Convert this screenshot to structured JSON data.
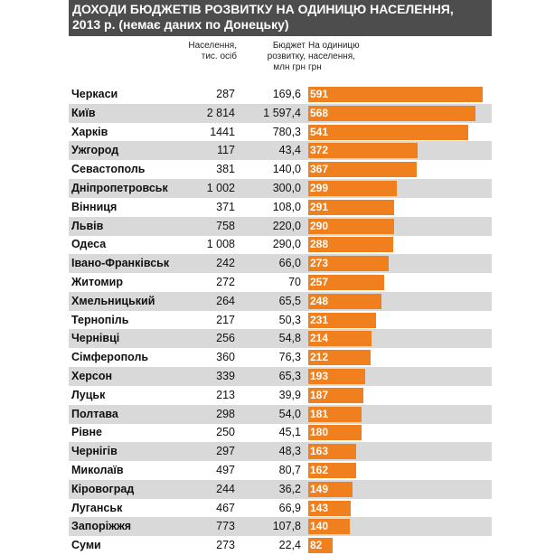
{
  "chart_data": {
    "type": "bar",
    "orientation": "horizontal",
    "title_line1": "ДОХОДИ БЮДЖЕТІВ РОЗВИТКУ НА ОДИНИЦЮ НАСЕЛЕННЯ,",
    "title_line2": "2013 р. (немає даних по Донецьку)",
    "columns": {
      "population": [
        "Населення,",
        "тис. осіб"
      ],
      "budget": [
        "Бюджет",
        "розвитку,",
        "млн грн"
      ],
      "per_capita": [
        "На одиницю",
        "населення,",
        "грн"
      ]
    },
    "colors": {
      "bar": "#f07f1e",
      "stripe": "#d9d9d9",
      "title_bg": "#4d4d4d"
    },
    "xlim": [
      0,
      591
    ],
    "rows": [
      {
        "city": "Черкаси",
        "population": "287",
        "budget": "169,6",
        "value": 591
      },
      {
        "city": "Київ",
        "population": "2 814",
        "budget": "1 597,4",
        "value": 568
      },
      {
        "city": "Харків",
        "population": "1441",
        "budget": "780,3",
        "value": 541
      },
      {
        "city": "Ужгород",
        "population": "117",
        "budget": "43,4",
        "value": 372
      },
      {
        "city": "Севастополь",
        "population": "381",
        "budget": "140,0",
        "value": 367
      },
      {
        "city": "Дніпропетровськ",
        "population": "1 002",
        "budget": "300,0",
        "value": 299
      },
      {
        "city": "Вінниця",
        "population": "371",
        "budget": "108,0",
        "value": 291
      },
      {
        "city": "Львів",
        "population": "758",
        "budget": "220,0",
        "value": 290
      },
      {
        "city": "Одеса",
        "population": "1 008",
        "budget": "290,0",
        "value": 288
      },
      {
        "city": "Івано-Франківськ",
        "population": "242",
        "budget": "66,0",
        "value": 273
      },
      {
        "city": "Житомир",
        "population": "272",
        "budget": "70",
        "value": 257
      },
      {
        "city": "Хмельницький",
        "population": "264",
        "budget": "65,5",
        "value": 248
      },
      {
        "city": "Тернопіль",
        "population": "217",
        "budget": "50,3",
        "value": 231
      },
      {
        "city": "Чернівці",
        "population": "256",
        "budget": "54,8",
        "value": 214
      },
      {
        "city": "Сімферополь",
        "population": "360",
        "budget": "76,3",
        "value": 212
      },
      {
        "city": "Херсон",
        "population": "339",
        "budget": "65,3",
        "value": 193
      },
      {
        "city": "Луцьк",
        "population": "213",
        "budget": "39,9",
        "value": 187
      },
      {
        "city": "Полтава",
        "population": "298",
        "budget": "54,0",
        "value": 181
      },
      {
        "city": "Рівне",
        "population": "250",
        "budget": "45,1",
        "value": 180
      },
      {
        "city": "Чернігів",
        "population": "297",
        "budget": "48,3",
        "value": 163
      },
      {
        "city": "Миколаїв",
        "population": "497",
        "budget": "80,7",
        "value": 162
      },
      {
        "city": "Кіровоград",
        "population": "244",
        "budget": "36,2",
        "value": 149
      },
      {
        "city": "Луганськ",
        "population": "467",
        "budget": "66,9",
        "value": 143
      },
      {
        "city": "Запоріжжя",
        "population": "773",
        "budget": "107,8",
        "value": 140
      },
      {
        "city": "Суми",
        "population": "273",
        "budget": "22,4",
        "value": 82
      }
    ]
  }
}
